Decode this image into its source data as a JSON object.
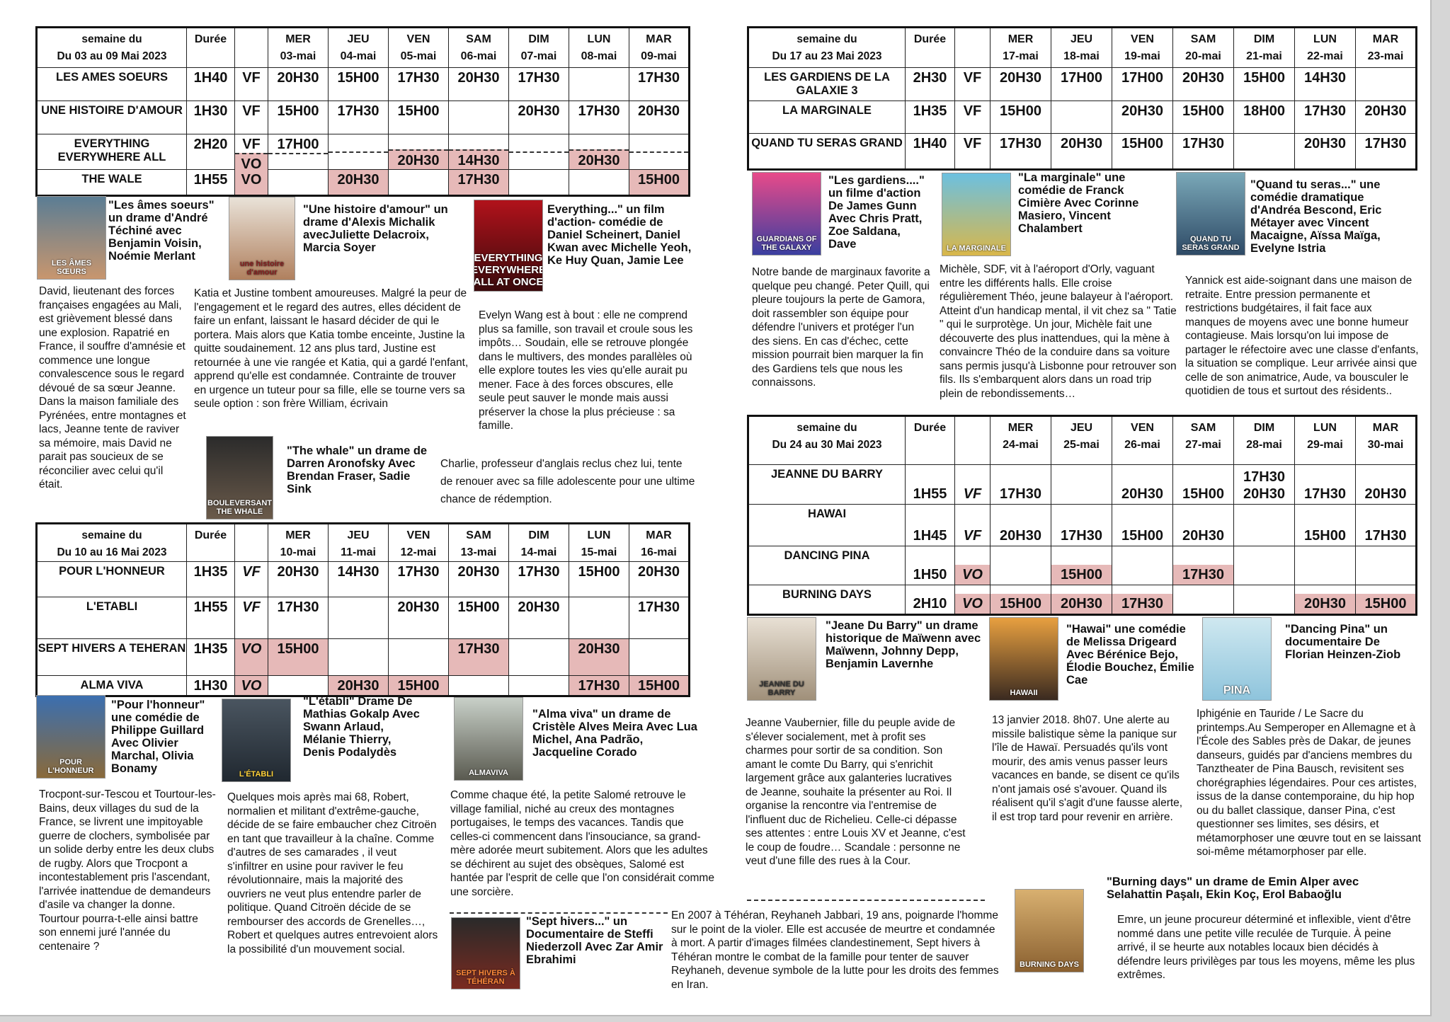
{
  "tables": [
    {
      "week_label": "semaine du",
      "week_range": "Du 03 au 09 Mai 2023",
      "duration_header": "Durée",
      "days": [
        [
          "MER",
          "03-mai"
        ],
        [
          "JEU",
          "04-mai"
        ],
        [
          "VEN",
          "05-mai"
        ],
        [
          "SAM",
          "06-mai"
        ],
        [
          "DIM",
          "07-mai"
        ],
        [
          "LUN",
          "08-mai"
        ],
        [
          "MAR",
          "09-mai"
        ]
      ],
      "rows": [
        {
          "title": "LES AMES SOEURS",
          "duration": "1H40",
          "lines": [
            {
              "version": "VF",
              "times": [
                "20H30",
                "15H00",
                "17H30",
                "20H30",
                "17H30",
                "",
                "17H30"
              ]
            }
          ]
        },
        {
          "title": "UNE HISTOIRE D'AMOUR",
          "duration": "1H30",
          "lines": [
            {
              "version": "VF",
              "times": [
                "15H00",
                "17H30",
                "15H00",
                "",
                "20H30",
                "17H30",
                "20H30"
              ]
            }
          ]
        },
        {
          "title": "EVERYTHING EVERYWHERE ALL",
          "duration": "2H20",
          "lines": [
            {
              "version": "VF",
              "times": [
                "17H00",
                "",
                "",
                "",
                "",
                "",
                ""
              ]
            },
            {
              "version": "VO",
              "times": [
                "",
                "",
                "20H30",
                "14H30",
                "",
                "20H30",
                ""
              ]
            }
          ]
        },
        {
          "title": "THE WALE",
          "duration": "1H55",
          "lines": [
            {
              "version": "VO",
              "times": [
                "",
                "20H30",
                "",
                "17H30",
                "",
                "",
                "15H00"
              ]
            }
          ]
        }
      ]
    },
    {
      "week_label": "semaine du",
      "week_range": "Du 17 au 23 Mai 2023",
      "duration_header": "Durée",
      "days": [
        [
          "MER",
          "17-mai"
        ],
        [
          "JEU",
          "18-mai"
        ],
        [
          "VEN",
          "19-mai"
        ],
        [
          "SAM",
          "20-mai"
        ],
        [
          "DIM",
          "21-mai"
        ],
        [
          "LUN",
          "22-mai"
        ],
        [
          "MAR",
          "23-mai"
        ]
      ],
      "rows": [
        {
          "title": "LES GARDIENS DE LA GALAXIE 3",
          "duration": "2H30",
          "lines": [
            {
              "version": "VF",
              "times": [
                "20H30",
                "17H00",
                "17H00",
                "20H30",
                "15H00",
                "14H30",
                ""
              ]
            }
          ]
        },
        {
          "title": "LA MARGINALE",
          "duration": "1H35",
          "lines": [
            {
              "version": "VF",
              "times": [
                "15H00",
                "",
                "20H30",
                "15H00",
                "18H00",
                "17H30",
                "20H30"
              ]
            }
          ]
        },
        {
          "title": "QUAND TU SERAS GRAND",
          "duration": "1H40",
          "lines": [
            {
              "version": "VF",
              "times": [
                "17H30",
                "20H30",
                "15H00",
                "17H30",
                "",
                "20H30",
                "17H30"
              ]
            }
          ]
        }
      ]
    },
    {
      "week_label": "semaine du",
      "week_range": "Du 10 au 16 Mai 2023",
      "duration_header": "Durée",
      "days": [
        [
          "MER",
          "10-mai"
        ],
        [
          "JEU",
          "11-mai"
        ],
        [
          "VEN",
          "12-mai"
        ],
        [
          "SAM",
          "13-mai"
        ],
        [
          "DIM",
          "14-mai"
        ],
        [
          "LUN",
          "15-mai"
        ],
        [
          "MAR",
          "16-mai"
        ]
      ],
      "rows": [
        {
          "title": "POUR L'HONNEUR",
          "duration": "1H35",
          "lines": [
            {
              "version": "VF",
              "times": [
                "20H30",
                "14H30",
                "17H30",
                "20H30",
                "17H30",
                "15H00",
                "20H30"
              ]
            }
          ]
        },
        {
          "title": "L'ETABLI",
          "duration": "1H55",
          "lines": [
            {
              "version": "VF",
              "times": [
                "17H30",
                "",
                "20H30",
                "15H00",
                "20H30",
                "",
                "17H30"
              ]
            }
          ]
        },
        {
          "title": "SEPT HIVERS A TEHERAN",
          "duration": "1H35",
          "lines": [
            {
              "version": "VO",
              "times": [
                "15H00",
                "",
                "",
                "17H30",
                "",
                "20H30",
                ""
              ]
            }
          ]
        },
        {
          "title": "ALMA VIVA",
          "duration": "1H30",
          "lines": [
            {
              "version": "VO",
              "times": [
                "",
                "20H30",
                "15H00",
                "",
                "",
                "17H30",
                "15H00"
              ]
            }
          ]
        }
      ]
    },
    {
      "week_label": "semaine du",
      "week_range": "Du 24 au 30 Mai 2023",
      "duration_header": "Durée",
      "days": [
        [
          "MER",
          "24-mai"
        ],
        [
          "JEU",
          "25-mai"
        ],
        [
          "VEN",
          "26-mai"
        ],
        [
          "SAM",
          "27-mai"
        ],
        [
          "DIM",
          "28-mai"
        ],
        [
          "LUN",
          "29-mai"
        ],
        [
          "MAR",
          "30-mai"
        ]
      ],
      "rows": [
        {
          "title": "JEANNE DU BARRY",
          "duration": "1H55",
          "lines": [
            {
              "version": "VF",
              "times": [
                "17H30",
                "",
                "20H30",
                "15H00",
                "17H30\n20H30",
                "17H30",
                "20H30"
              ]
            }
          ]
        },
        {
          "title": "HAWAI",
          "duration": "1H45",
          "lines": [
            {
              "version": "VF",
              "times": [
                "20H30",
                "17H30",
                "15H00",
                "20H30",
                "",
                "15H00",
                "17H30"
              ]
            }
          ]
        },
        {
          "title": "DANCING PINA",
          "duration": "1H50",
          "lines": [
            {
              "version": "VO",
              "times": [
                "",
                "15H00",
                "",
                "17H30",
                "",
                "",
                ""
              ]
            }
          ]
        },
        {
          "title": "BURNING DAYS",
          "duration": "2H10",
          "lines": [
            {
              "version": "VO",
              "times": [
                "15H00",
                "20H30",
                "17H30",
                "",
                "",
                "20H30",
                "15H00"
              ]
            }
          ]
        }
      ]
    }
  ],
  "films": {
    "ames": {
      "poster": "LES ÂMES SŒURS",
      "caption": "\"Les âmes soeurs\" un drame d'André Téchiné avec Benjamin Voisin, Noémie Merlant",
      "desc": "David, lieutenant des forces françaises engagées au Mali, est grièvement blessé dans une explosion. Rapatrié en France, il souffre d'amnésie et commence une longue convalescence sous le regard dévoué de sa sœur Jeanne. Dans la maison familiale des Pyrénées, entre montagnes et lacs, Jeanne tente de raviver sa mémoire, mais David ne parait pas soucieux de se réconcilier avec celui qu'il était."
    },
    "histoire": {
      "poster": "une histoire d'amour",
      "caption": "\"Une histoire d'amour\" un drame d'Alexis Michalik avecJuliette Delacroix, Marcia Soyer",
      "desc": "Katia et Justine tombent amoureuses. Malgré la peur de l'engagement et le regard des autres, elles décident de faire un enfant, laissant le hasard décider de qui le portera. Mais alors que Katia tombe enceinte, Justine la quitte soudainement. 12 ans plus tard, Justine est retournée à une vie rangée et Katia, qui a gardé l'enfant, apprend qu'elle est condamnée. Contrainte de trouver en urgence un tuteur pour sa fille, elle se tourne vers sa seule option : son frère William, écrivain"
    },
    "everything": {
      "poster": "EVERYTHING EVERYWHERE ALL AT ONCE",
      "caption": "Everything...\" un film d'action- comédie de  Daniel Scheinert, Daniel Kwan avec Michelle Yeoh, Ke Huy Quan, Jamie Lee",
      "desc": "Evelyn Wang est à bout : elle ne comprend plus sa famille, son travail et croule sous les impôts… Soudain, elle se retrouve plongée dans le multivers, des mondes parallèles où elle explore toutes les vies qu'elle aurait pu mener. Face à des forces obscures, elle seule peut sauver le monde mais aussi préserver la chose la plus précieuse : sa famille."
    },
    "whale": {
      "poster": "BOULEVERSANT THE WHALE",
      "caption": "\"The whale\" un drame de Darren Aronofsky Avec Brendan Fraser, Sadie Sink",
      "desc": "Charlie, professeur d'anglais reclus chez lui, tente de renouer avec sa fille adolescente pour une ultime chance de rédemption."
    },
    "gardiens": {
      "poster": "GUARDIANS OF THE GALAXY",
      "caption": "\"Les gardiens....\" un filme d'action De James Gunn Avec Chris Pratt, Zoe Saldana, Dave",
      "desc": "Notre bande de marginaux favorite a quelque peu changé. Peter Quill, qui pleure toujours la perte de Gamora, doit rassembler son équipe pour défendre l'univers et protéger l'un des siens. En cas d'échec, cette mission pourrait bien marquer la fin des Gardiens tels que nous les connaissons."
    },
    "marginale": {
      "poster": "LA MARGINALE",
      "caption": "\"La marginale\" une comédie de Franck Cimière Avec Corinne Masiero, Vincent Chalambert",
      "desc": "Michèle, SDF, vit à l'aéroport d'Orly, vaguant entre les différents halls. Elle croise régulièrement Théo, jeune balayeur à l'aéroport. Atteint d'un handicap mental, il vit chez sa \" Tatie \" qui le surprotège. Un jour, Michèle fait une découverte des plus inattendues, qui la mène à convaincre Théo de la conduire dans sa voiture sans permis jusqu'à Lisbonne pour retrouver son fils. Ils s'embarquent alors dans un road trip plein de rebondissements…"
    },
    "quand": {
      "poster": "QUAND TU SERAS GRAND",
      "caption": "\"Quand tu seras...\" une comédie dramatique d'Andréa Bescond, Eric Métayer avec Vincent Macaigne, Aïssa Maïga, Evelyne Istria",
      "desc": "Yannick est aide-soignant dans une maison de retraite. Entre pression permanente et restrictions budgétaires, il fait face aux manques de moyens avec une bonne humeur contagieuse. Mais lorsqu'on lui impose de partager le réfectoire avec une classe d'enfants, la situation se complique. Leur arrivée ainsi que celle de son animatrice, Aude, va bousculer le quotidien de tous et surtout des résidents.."
    },
    "honneur": {
      "poster": "POUR L'HONNEUR",
      "caption": "\"Pour l'honneur\" une comédie de Philippe Guillard Avec Olivier Marchal, Olivia Bonamy",
      "desc": "Trocpont-sur-Tescou et Tourtour-les-Bains, deux villages du sud de la France, se livrent une impitoyable guerre de clochers, symbolisée par un solide derby entre les deux clubs de rugby. Alors que Trocpont a incontestablement pris l'ascendant, l'arrivée inattendue de demandeurs d'asile va changer la donne. Tourtour pourra-t-elle ainsi battre son ennemi juré l'année du centenaire ?"
    },
    "etabli": {
      "poster": "L'ÉTABLI",
      "caption": "\"L'établi\"  Drame De Mathias Gokalp Avec Swann Arlaud, Mélanie Thierry, Denis Podalydès",
      "desc": "Quelques mois après mai 68, Robert, normalien et militant d'extrême-gauche, décide de se faire embaucher chez Citroën en tant que travailleur à la chaîne. Comme d'autres de ses camarades , il veut s'infiltrer en usine pour raviver le feu révolutionnaire, mais la majorité des ouvriers ne veut plus entendre parler de politique. Quand Citroën décide de se rembourser des accords de Grenelles…, Robert et quelques autres entrevoient alors la possibilité d'un mouvement social."
    },
    "alma": {
      "poster": "ALMAVIVA",
      "caption": "\"Alma viva\" un drame de Cristèle Alves Meira Avec Lua Michel, Ana Padrão, Jacqueline Corado",
      "desc": "Comme chaque été, la petite Salomé retrouve le village familial, niché au creux des montagnes portugaises, le temps des vacances. Tandis que celles-ci commencent dans l'insouciance, sa grand-mère adorée meurt subitement. Alors que les adultes se déchirent au sujet des obsèques, Salomé est hantée par l'esprit de celle que l'on considérait comme une sorcière."
    },
    "sept": {
      "poster": "SEPT HIVERS À TÉHÉRAN",
      "caption": "\"Sept hivers...\" un Documentaire de Steffi Niederzoll Avec Zar Amir Ebrahimi",
      "desc": "En 2007 à Téhéran, Reyhaneh Jabbari, 19 ans, poignarde l'homme sur le point de la violer. Elle est accusée de meurtre et condamnée à mort. A partir d'images filmées clandestinement, Sept hivers à Téhéran montre le combat de la famille pour tenter de sauver Reyhaneh, devenue symbole de la lutte pour les droits des femmes en Iran."
    },
    "jeanne": {
      "poster": "JEANNE DU BARRY",
      "caption": "\"Jeane Du Barry\" un drame historique de Maïwenn avec Maïwenn, Johnny Depp, Benjamin Lavernhe",
      "desc": "Jeanne Vaubernier, fille du peuple avide de s'élever socialement, met à profit ses charmes pour sortir de sa condition. Son amant le comte Du Barry, qui s'enrichit largement grâce aux galanteries lucratives de Jeanne, souhaite la présenter au Roi. Il organise la rencontre via l'entremise de l'influent duc de Richelieu. Celle-ci dépasse ses attentes : entre Louis XV et Jeanne, c'est le coup de foudre… Scandale : personne ne veut d'une fille des rues à la Cour."
    },
    "hawai": {
      "poster": "HAWAII",
      "caption": "\"Hawai\" une comédie de Melissa Drigeard Avec Bérénice Bejo, Élodie Bouchez, Émilie Cae",
      "desc": "13 janvier 2018. 8h07. Une alerte au missile balistique sème la panique sur l'île de Hawaï. Persuadés qu'ils vont mourir, des amis venus passer leurs vacances en bande, se disent ce qu'ils n'ont jamais osé s'avouer. Quand ils réalisent qu'il s'agit d'une fausse alerte, il est trop tard pour revenir en arrière."
    },
    "pina": {
      "poster": "PINA",
      "caption": "\"Dancing Pina\" un documentaire De Florian Heinzen-Ziob",
      "desc": "Iphigénie en Tauride / Le Sacre du printemps.Au Semperoper en Allemagne et à l'École des Sables près de Dakar, de jeunes danseurs, guidés par d'anciens membres du Tanztheater de Pina Bausch, revisitent ses chorégraphies légendaires. Pour ces artistes, issus de la danse contemporaine, du hip hop ou du ballet classique, danser Pina, c'est questionner ses limites, ses désirs, et métamorphoser une œuvre tout en se laissant soi-même métamorphoser par elle."
    },
    "burning": {
      "poster": "BURNING DAYS",
      "caption": "\"Burning days\" un drame de Emin Alper avec Selahattin Paşalı, Ekin Koç, Erol Babaoğlu",
      "desc": "Emre, un jeune procureur déterminé et inflexible, vient d'être nommé dans une petite ville reculée de Turquie. À peine arrivé, il se heurte aux notables locaux bien décidés à défendre leurs privilèges par tous les moyens, même les plus extrêmes."
    }
  },
  "colors": {
    "vo_highlight": "#e6b9b8",
    "border": "#111111"
  }
}
